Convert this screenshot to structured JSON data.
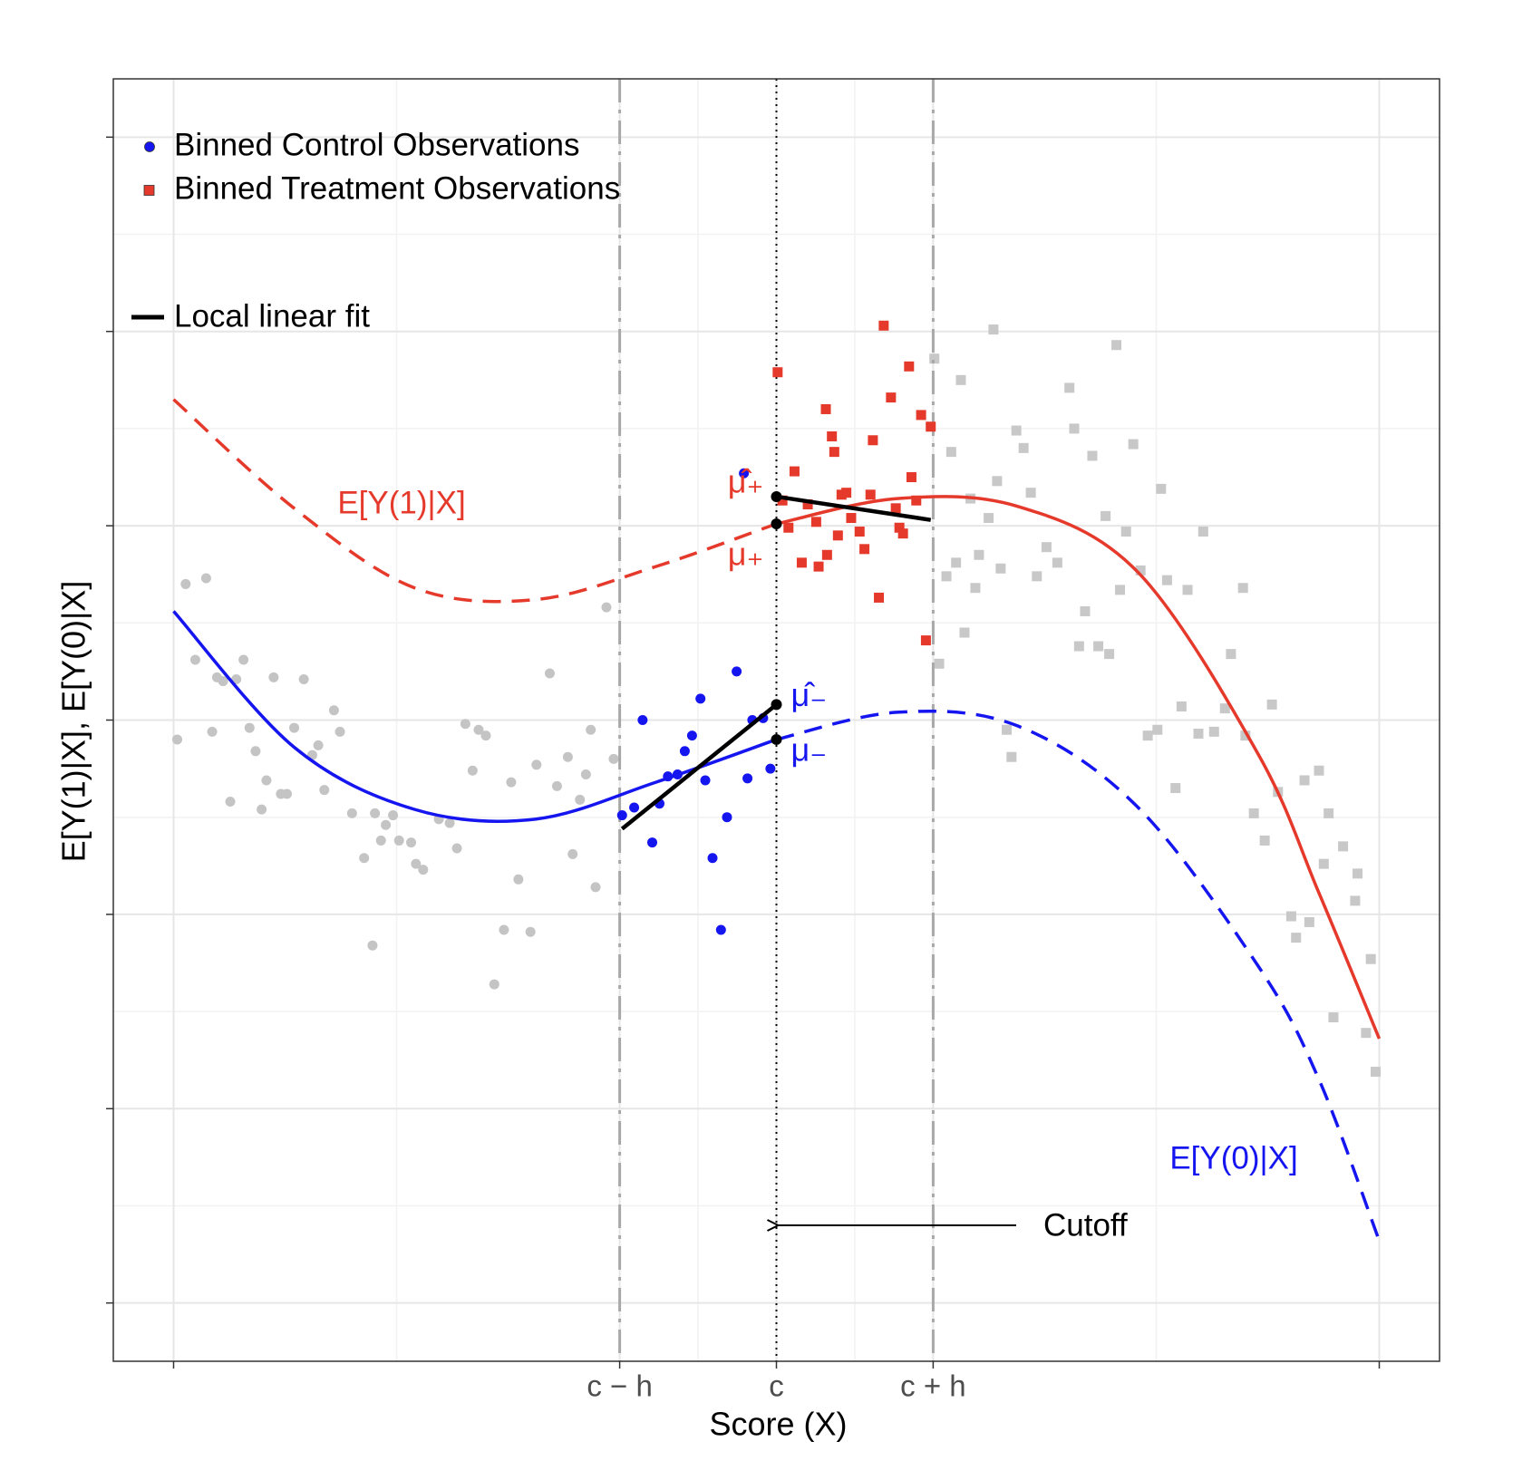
{
  "chart_data": {
    "type": "scatter",
    "x_label": "Score (X)",
    "y_label": "E[Y(1)|X], E[Y(0)|X]",
    "xlim": [
      -5,
      105
    ],
    "ylim": [
      -0.3,
      6.3
    ],
    "xticks": [
      {
        "value": 0,
        "label": null
      },
      {
        "value": 37,
        "label": "c − h"
      },
      {
        "value": 50,
        "label": "c"
      },
      {
        "value": 63,
        "label": "c + h"
      },
      {
        "value": 100,
        "label": null
      }
    ],
    "yticks": [
      {
        "value": 0,
        "label": null
      },
      {
        "value": 1,
        "label": null
      },
      {
        "value": 2,
        "label": null
      },
      {
        "value": 3,
        "label": null
      },
      {
        "value": 4,
        "label": null
      },
      {
        "value": 5,
        "label": null
      },
      {
        "value": 6,
        "label": null
      }
    ],
    "grid": true,
    "series": [
      {
        "name": "Binned Control Observations",
        "color": "#1515f0",
        "marker": "circle",
        "x": [
          38.9,
          38.2,
          37.2,
          39.7,
          40.3,
          41.0,
          41.8,
          42.4,
          43.0,
          43.7,
          44.1,
          44.7,
          45.4,
          45.9,
          46.7,
          47.3,
          47.6,
          48.0,
          48.9,
          49.5
        ],
        "values": [
          3.0,
          2.55,
          2.51,
          2.37,
          2.57,
          2.71,
          2.72,
          2.84,
          2.92,
          3.11,
          2.69,
          2.29,
          1.92,
          2.5,
          3.25,
          4.27,
          2.7,
          3.0,
          3.01,
          2.75
        ]
      },
      {
        "name": "Binned Treatment Observations",
        "color": "#e5392b",
        "marker": "square",
        "x": [
          50.1,
          50.5,
          51.0,
          51.5,
          52.1,
          52.6,
          53.3,
          53.5,
          54.1,
          54.2,
          54.6,
          54.8,
          55.1,
          55.4,
          55.8,
          56.2,
          56.9,
          57.3,
          57.8,
          58.0,
          58.5,
          58.9,
          59.5,
          59.9,
          60.2,
          60.5,
          61.0,
          61.2,
          61.6,
          62.0,
          62.4,
          62.8
        ],
        "values": [
          4.79,
          4.13,
          3.99,
          4.28,
          3.81,
          4.11,
          4.02,
          3.79,
          4.6,
          3.85,
          4.46,
          4.38,
          3.95,
          4.16,
          4.17,
          4.04,
          3.97,
          3.88,
          4.16,
          4.44,
          3.63,
          5.03,
          4.66,
          4.09,
          3.99,
          3.96,
          4.82,
          4.25,
          4.13,
          4.57,
          3.41,
          4.51
        ]
      }
    ],
    "background_points": [
      {
        "color": "#c4c4c4",
        "marker": "circle",
        "x": [
          0.3,
          1.0,
          1.8,
          2.7,
          3.2,
          3.6,
          4.1,
          4.7,
          5.2,
          5.8,
          6.3,
          6.8,
          7.3,
          7.7,
          8.3,
          8.9,
          9.4,
          10.0,
          10.8,
          11.5,
          12.0,
          12.5,
          13.3,
          13.8,
          14.8,
          15.8,
          16.5,
          16.7,
          17.2,
          17.6,
          18.2,
          18.7,
          19.7,
          20.1,
          20.7,
          22.0,
          22.9,
          23.5,
          24.2,
          24.8,
          25.3,
          25.9,
          26.6,
          27.4,
          28.0,
          28.6,
          29.6,
          30.1,
          31.2,
          31.8,
          32.7,
          33.1,
          33.7,
          34.2,
          34.6,
          35.0,
          35.9,
          36.5
        ],
        "values": [
          2.9,
          3.7,
          3.31,
          3.73,
          2.94,
          3.22,
          3.2,
          2.58,
          3.21,
          3.31,
          2.96,
          2.84,
          2.54,
          2.69,
          3.22,
          2.62,
          2.62,
          2.96,
          3.21,
          2.82,
          2.87,
          2.64,
          3.05,
          2.94,
          2.52,
          2.29,
          1.84,
          2.52,
          2.38,
          2.46,
          2.51,
          2.38,
          2.37,
          2.26,
          2.23,
          2.49,
          2.47,
          2.34,
          2.98,
          2.74,
          2.95,
          2.92,
          1.64,
          1.92,
          2.68,
          2.18,
          1.91,
          2.77,
          3.24,
          2.66,
          2.81,
          2.31,
          2.59,
          2.72,
          2.95,
          2.14,
          3.58,
          2.8
        ]
      },
      {
        "color": "#c8c8c8",
        "marker": "square",
        "x": [
          63.1,
          63.5,
          64.1,
          64.5,
          64.9,
          65.3,
          65.6,
          66.1,
          66.5,
          66.8,
          67.6,
          68.0,
          68.3,
          68.6,
          69.1,
          69.5,
          69.9,
          70.5,
          71.1,
          71.6,
          72.4,
          73.3,
          74.3,
          74.7,
          75.1,
          75.6,
          76.2,
          76.7,
          77.3,
          77.6,
          78.2,
          78.5,
          79.0,
          79.6,
          80.2,
          80.8,
          81.6,
          81.9,
          82.4,
          83.1,
          83.6,
          84.1,
          85.0,
          85.4,
          86.3,
          87.2,
          87.7,
          88.7,
          88.9,
          89.6,
          90.5,
          91.1,
          91.6,
          92.7,
          93.1,
          93.8,
          94.2,
          95.0,
          95.4,
          95.8,
          96.2,
          97.0,
          98.0,
          98.2,
          98.9,
          99.3,
          99.7
        ],
        "values": [
          4.86,
          3.29,
          3.74,
          4.38,
          3.81,
          4.75,
          3.45,
          4.14,
          3.68,
          3.85,
          4.04,
          5.01,
          4.23,
          3.78,
          2.95,
          2.81,
          4.49,
          4.4,
          4.17,
          3.74,
          3.89,
          3.81,
          4.71,
          4.5,
          3.38,
          3.56,
          4.36,
          3.38,
          4.05,
          3.34,
          4.93,
          3.67,
          3.97,
          4.42,
          3.77,
          2.92,
          2.95,
          4.19,
          3.72,
          2.65,
          3.07,
          3.67,
          2.93,
          3.97,
          2.94,
          3.06,
          3.34,
          3.68,
          2.92,
          2.52,
          2.38,
          3.08,
          2.63,
          1.99,
          1.88,
          2.69,
          1.96,
          2.74,
          2.26,
          2.52,
          1.47,
          2.35,
          2.07,
          2.21,
          1.39,
          1.77,
          1.19
        ]
      }
    ],
    "curves": [
      {
        "label": "E[Y(1)|X]",
        "color": "#e5392b",
        "segments": [
          {
            "style": "dashed",
            "x": [
              0,
              10,
              20,
              30,
              40,
              50
            ],
            "values": [
              4.65,
              4.09,
              3.68,
              3.62,
              3.79,
              4.01
            ]
          },
          {
            "style": "solid",
            "x": [
              50,
              60,
              70,
              80,
              90,
              95,
              100
            ],
            "values": [
              4.01,
              4.14,
              4.1,
              3.76,
              2.82,
              2.11,
              1.36
            ]
          }
        ]
      },
      {
        "label": "E[Y(0)|X]",
        "color": "#1515f0",
        "segments": [
          {
            "style": "solid",
            "x": [
              0,
              10,
              20,
              30,
              40,
              50
            ],
            "values": [
              3.56,
              2.86,
              2.54,
              2.49,
              2.68,
              2.9
            ]
          },
          {
            "style": "dashed",
            "x": [
              50,
              60,
              70,
              80,
              90,
              95,
              100
            ],
            "values": [
              2.9,
              3.04,
              2.97,
              2.55,
              1.73,
              1.15,
              0.32
            ]
          }
        ]
      }
    ],
    "fit": {
      "name": "Local linear fit",
      "color": "#000000",
      "lines": [
        {
          "x": [
            37.2,
            50
          ],
          "values": [
            2.44,
            3.08
          ]
        },
        {
          "x": [
            50,
            62.8
          ],
          "values": [
            4.15,
            4.03
          ]
        }
      ]
    },
    "estimates": [
      {
        "label": "μ̂₊",
        "color": "#e5392b",
        "x": 50,
        "value": 4.15
      },
      {
        "label": "μ₊",
        "color": "#e5392b",
        "x": 50,
        "value": 4.01
      },
      {
        "label": "μ̂₋",
        "color": "#1515f0",
        "x": 50,
        "value": 3.08
      },
      {
        "label": "μ₋",
        "color": "#1515f0",
        "x": 50,
        "value": 2.9
      }
    ],
    "cutoff_label": "Cutoff"
  }
}
